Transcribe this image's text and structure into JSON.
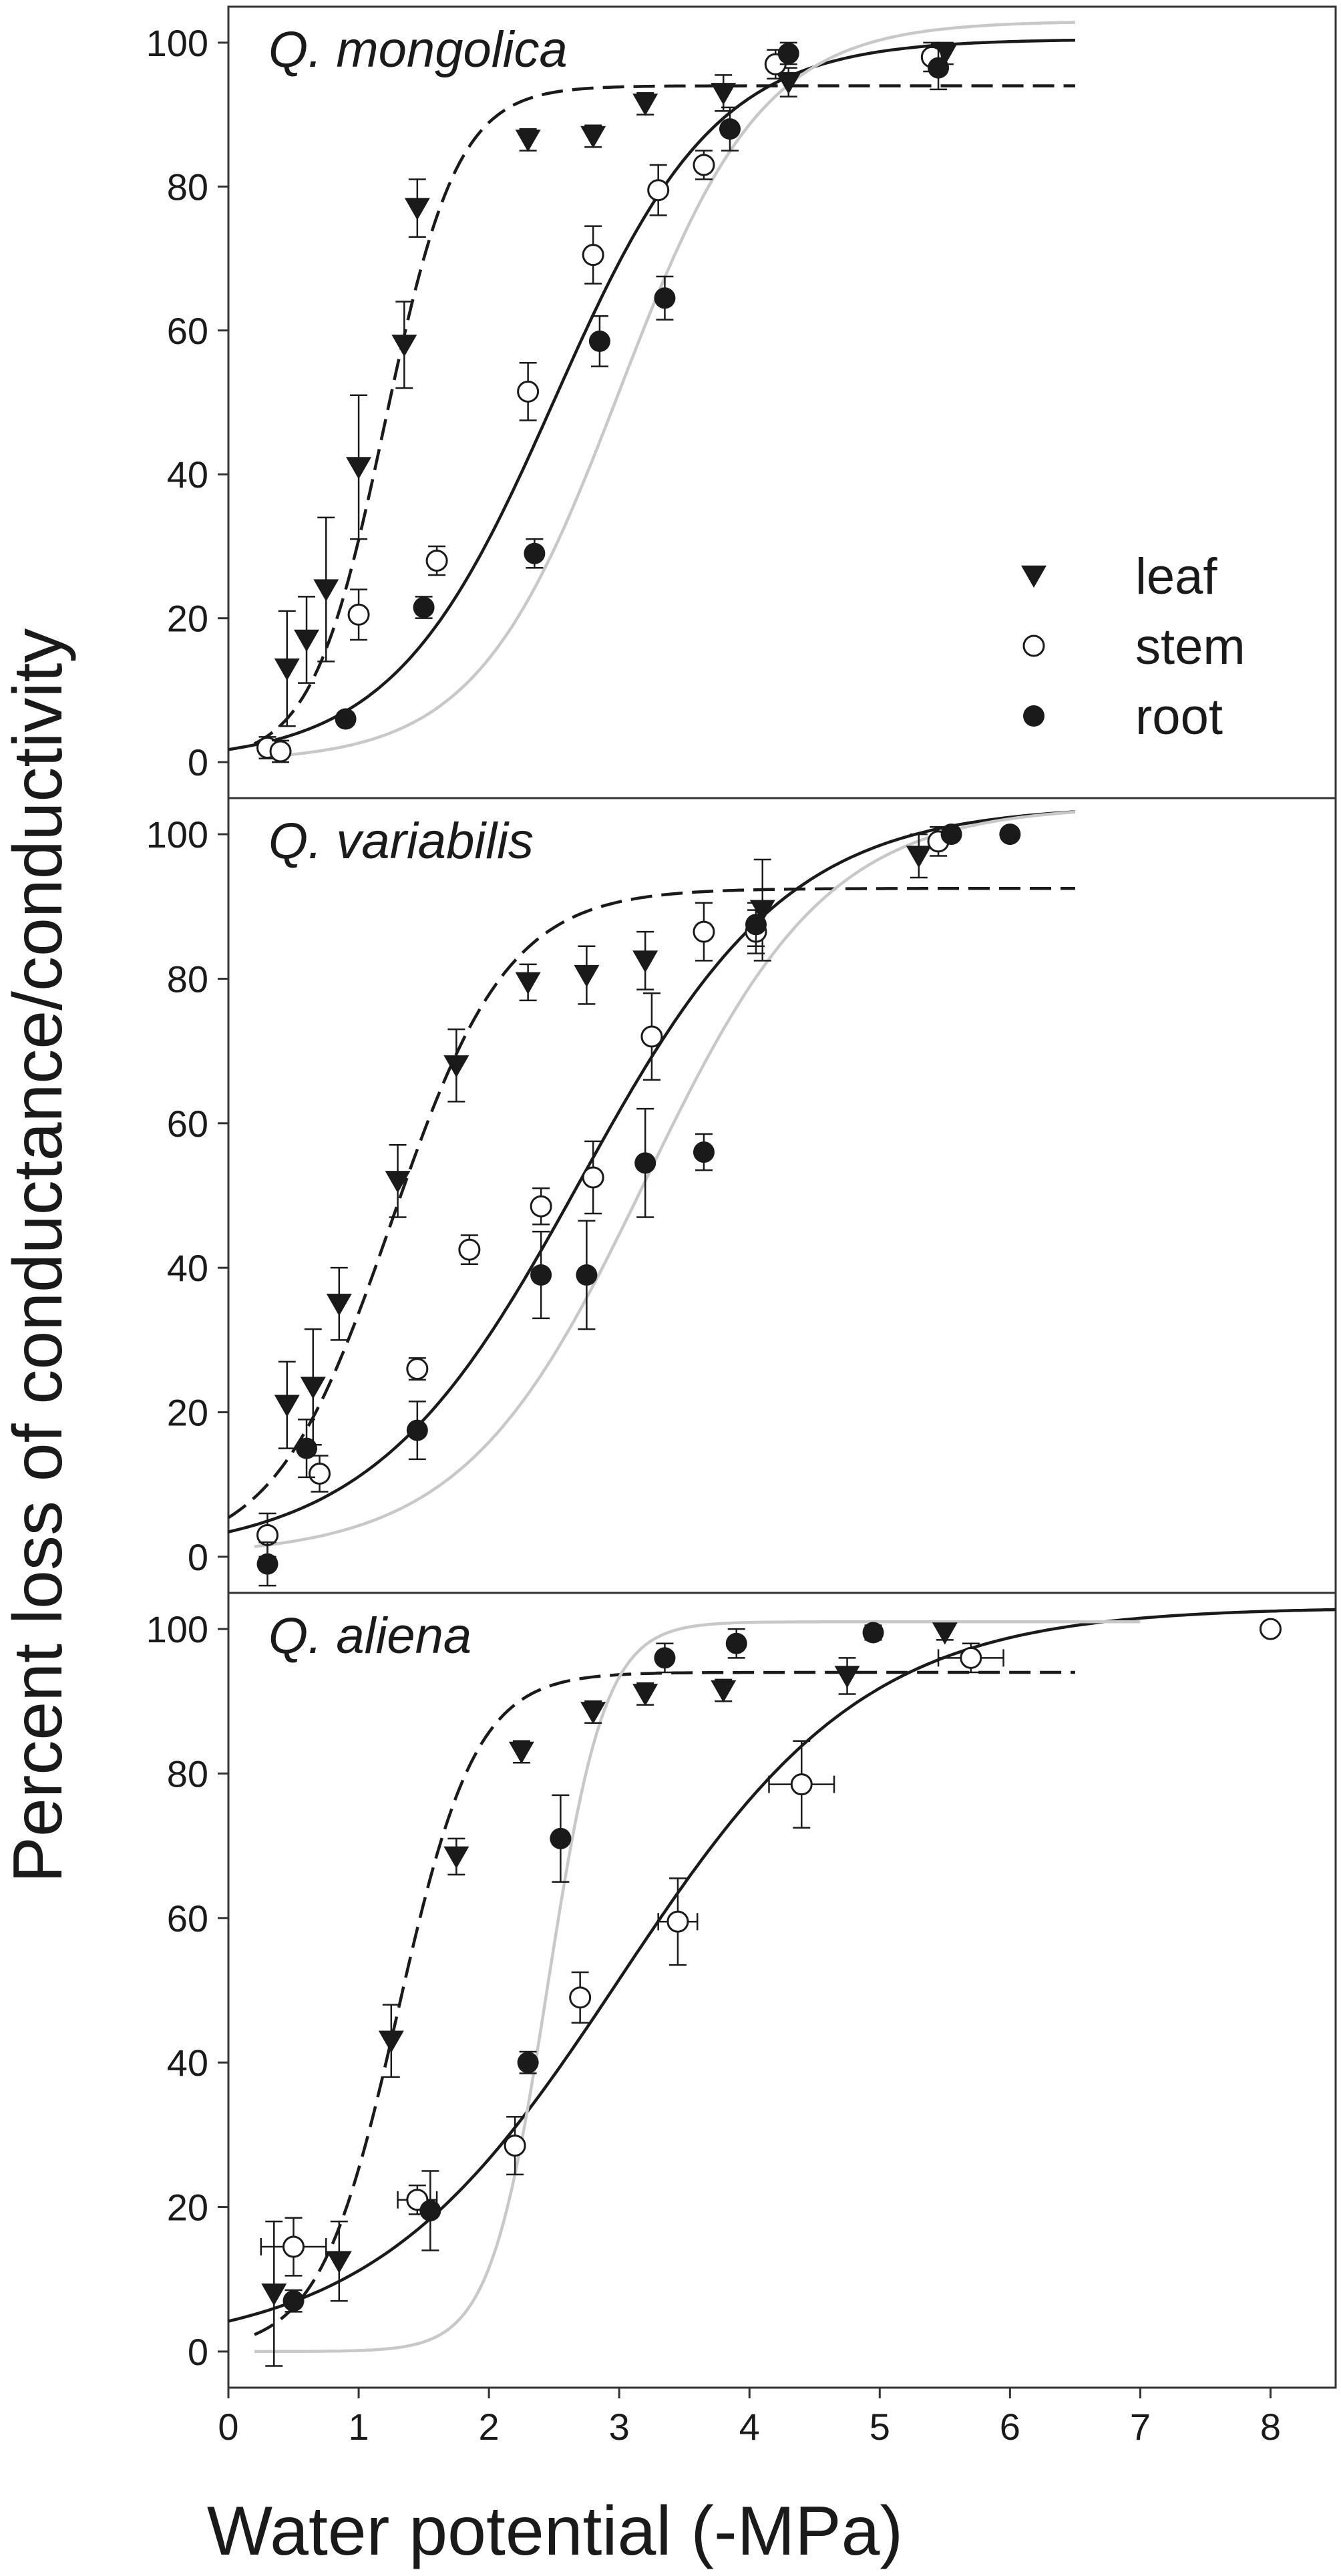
{
  "chart_data": {
    "type": "scatter",
    "ylabel": "Percent loss of conductance/conductivity",
    "xlabel": "Water potential (-MPa)",
    "xlim": [
      0,
      8.5
    ],
    "ylim": [
      -5,
      105
    ],
    "x_ticks": [
      0,
      1,
      2,
      3,
      4,
      5,
      6,
      7,
      8
    ],
    "y_ticks": [
      0,
      20,
      40,
      60,
      80,
      100
    ],
    "legend": {
      "placement": "inside first panel, right",
      "entries": [
        {
          "key": "leaf",
          "label": "leaf",
          "marker": "filled-triangle-down",
          "line": "dashed black"
        },
        {
          "key": "stem",
          "label": "stem",
          "marker": "open-circle",
          "line": "solid black"
        },
        {
          "key": "root",
          "label": "root",
          "marker": "filled-circle",
          "line": "solid light gray"
        }
      ]
    },
    "colors": {
      "black": "#1a1a1a",
      "gray_curve": "#c8c8c8",
      "axis": "#333333"
    },
    "panels": [
      {
        "title": "Q. mongolica",
        "series": [
          {
            "key": "leaf",
            "name": "leaf",
            "points": [
              {
                "x": 0.45,
                "y": 13,
                "yerr": 8
              },
              {
                "x": 0.6,
                "y": 17,
                "yerr": 6
              },
              {
                "x": 0.75,
                "y": 24,
                "yerr": 10
              },
              {
                "x": 1.0,
                "y": 41,
                "yerr": 10
              },
              {
                "x": 1.35,
                "y": 58,
                "yerr": 6
              },
              {
                "x": 1.45,
                "y": 77,
                "yerr": 4
              },
              {
                "x": 2.3,
                "y": 86.5,
                "yerr": 1.5
              },
              {
                "x": 2.8,
                "y": 87,
                "yerr": 1.5
              },
              {
                "x": 3.2,
                "y": 91.5,
                "yerr": 1.5
              },
              {
                "x": 3.8,
                "y": 93,
                "yerr": 2.5
              },
              {
                "x": 4.3,
                "y": 94.5,
                "yerr": 2
              },
              {
                "x": 5.5,
                "y": 98.5,
                "yerr": 1.5
              }
            ]
          },
          {
            "key": "stem",
            "name": "stem",
            "points": [
              {
                "x": 0.3,
                "y": 2,
                "yerr": 1.5
              },
              {
                "x": 0.4,
                "y": 1.5,
                "yerr": 1.5
              },
              {
                "x": 1.0,
                "y": 20.5,
                "yerr": 3.5
              },
              {
                "x": 1.6,
                "y": 28,
                "yerr": 2
              },
              {
                "x": 2.3,
                "y": 51.5,
                "yerr": 4
              },
              {
                "x": 2.8,
                "y": 70.5,
                "yerr": 4
              },
              {
                "x": 3.3,
                "y": 79.5,
                "yerr": 3.5
              },
              {
                "x": 3.65,
                "y": 83,
                "yerr": 2
              },
              {
                "x": 4.2,
                "y": 97,
                "yerr": 2
              },
              {
                "x": 5.4,
                "y": 98,
                "yerr": 2
              }
            ]
          },
          {
            "key": "root",
            "name": "root",
            "points": [
              {
                "x": 0.9,
                "y": 6,
                "yerr": 0.8
              },
              {
                "x": 1.5,
                "y": 21.5,
                "yerr": 1.5
              },
              {
                "x": 2.35,
                "y": 29,
                "yerr": 2
              },
              {
                "x": 2.85,
                "y": 58.5,
                "yerr": 3.5
              },
              {
                "x": 3.35,
                "y": 64.5,
                "yerr": 3
              },
              {
                "x": 3.85,
                "y": 88,
                "yerr": 3
              },
              {
                "x": 4.3,
                "y": 98.5,
                "yerr": 1.5
              },
              {
                "x": 5.45,
                "y": 96.5,
                "yerr": 3
              }
            ]
          }
        ],
        "curves": [
          {
            "key": "leaf",
            "style": "dashed",
            "a": 94,
            "b": 1.2,
            "c": 0.28,
            "x_start": 0.2,
            "x_end": 6.5
          },
          {
            "key": "stem",
            "style": "solid",
            "a": 100.5,
            "b": 2.5,
            "c": 0.62,
            "x_start": 0,
            "x_end": 6.5
          },
          {
            "key": "root",
            "style": "gray",
            "a": 103,
            "b": 3.0,
            "c": 0.55,
            "x_start": 0.4,
            "x_end": 6.5
          }
        ]
      },
      {
        "title": "Q. variabilis",
        "series": [
          {
            "key": "leaf",
            "name": "leaf",
            "points": [
              {
                "x": 0.45,
                "y": 21,
                "yerr": 6
              },
              {
                "x": 0.65,
                "y": 23.5,
                "yerr": 8
              },
              {
                "x": 0.85,
                "y": 35,
                "yerr": 5
              },
              {
                "x": 1.3,
                "y": 52,
                "yerr": 5
              },
              {
                "x": 1.75,
                "y": 68,
                "yerr": 5
              },
              {
                "x": 2.3,
                "y": 79.5,
                "yerr": 2.5
              },
              {
                "x": 2.75,
                "y": 80.5,
                "yerr": 4
              },
              {
                "x": 3.2,
                "y": 82.5,
                "yerr": 4
              },
              {
                "x": 4.1,
                "y": 89.5,
                "yerr": 7
              },
              {
                "x": 5.3,
                "y": 97,
                "yerr": 3
              }
            ]
          },
          {
            "key": "stem",
            "name": "stem",
            "points": [
              {
                "x": 0.3,
                "y": 3,
                "yerr": 3
              },
              {
                "x": 0.7,
                "y": 11.5,
                "yerr": 2.5
              },
              {
                "x": 1.45,
                "y": 26,
                "yerr": 1.5
              },
              {
                "x": 1.85,
                "y": 42.5,
                "yerr": 2
              },
              {
                "x": 2.4,
                "y": 48.5,
                "yerr": 2.5
              },
              {
                "x": 2.8,
                "y": 52.5,
                "yerr": 5
              },
              {
                "x": 3.25,
                "y": 72,
                "yerr": 6
              },
              {
                "x": 3.65,
                "y": 86.5,
                "yerr": 4
              },
              {
                "x": 4.05,
                "y": 86.5,
                "yerr": 3
              },
              {
                "x": 5.45,
                "y": 99,
                "yerr": 2
              }
            ]
          },
          {
            "key": "root",
            "name": "root",
            "points": [
              {
                "x": 0.3,
                "y": -1,
                "yerr": 3
              },
              {
                "x": 0.6,
                "y": 15,
                "yerr": 4
              },
              {
                "x": 1.45,
                "y": 17.5,
                "yerr": 4
              },
              {
                "x": 2.4,
                "y": 39,
                "yerr": 6
              },
              {
                "x": 2.75,
                "y": 39,
                "yerr": 7.5
              },
              {
                "x": 3.2,
                "y": 54.5,
                "yerr": 7.5
              },
              {
                "x": 3.65,
                "y": 56,
                "yerr": 2.5
              },
              {
                "x": 4.05,
                "y": 87.5,
                "yerr": 3
              },
              {
                "x": 5.55,
                "y": 100,
                "yerr": 0.5
              },
              {
                "x": 6.0,
                "y": 100,
                "yerr": 0.5
              }
            ]
          }
        ],
        "curves": [
          {
            "key": "leaf",
            "style": "dashed",
            "a": 92.5,
            "b": 1.25,
            "c": 0.45,
            "x_start": 0,
            "x_end": 6.5
          },
          {
            "key": "stem",
            "style": "solid",
            "a": 104,
            "b": 2.7,
            "c": 0.8,
            "x_start": 0,
            "x_end": 6.5
          },
          {
            "key": "root",
            "style": "gray",
            "a": 104,
            "b": 3.2,
            "c": 0.7,
            "x_start": 0.2,
            "x_end": 6.5
          }
        ]
      },
      {
        "title": "Q. aliena",
        "series": [
          {
            "key": "leaf",
            "name": "leaf",
            "points": [
              {
                "x": 0.35,
                "y": 8,
                "yerr": 10
              },
              {
                "x": 0.85,
                "y": 12.5,
                "yerr": 5.5
              },
              {
                "x": 1.25,
                "y": 43,
                "yerr": 5
              },
              {
                "x": 1.75,
                "y": 68.5,
                "yerr": 2.5
              },
              {
                "x": 2.25,
                "y": 83,
                "yerr": 1.5
              },
              {
                "x": 2.8,
                "y": 88.5,
                "yerr": 1.5
              },
              {
                "x": 3.2,
                "y": 91,
                "yerr": 1.5
              },
              {
                "x": 3.8,
                "y": 91.5,
                "yerr": 1.5
              },
              {
                "x": 4.75,
                "y": 93.5,
                "yerr": 2.5
              },
              {
                "x": 5.5,
                "y": 99.5,
                "yerr": 1
              }
            ]
          },
          {
            "key": "stem",
            "name": "stem",
            "points": [
              {
                "x": 0.5,
                "y": 14.5,
                "yerr": 4,
                "xerr": 0.25
              },
              {
                "x": 1.45,
                "y": 21,
                "yerr": 2,
                "xerr": 0.15
              },
              {
                "x": 2.2,
                "y": 28.5,
                "yerr": 4
              },
              {
                "x": 2.7,
                "y": 49,
                "yerr": 3.5
              },
              {
                "x": 3.45,
                "y": 59.5,
                "yerr": 6,
                "xerr": 0.15
              },
              {
                "x": 4.4,
                "y": 78.5,
                "yerr": 6,
                "xerr": 0.25
              },
              {
                "x": 5.7,
                "y": 96,
                "yerr": 2,
                "xerr": 0.25
              },
              {
                "x": 8.0,
                "y": 100,
                "yerr": 0.5
              }
            ]
          },
          {
            "key": "root",
            "name": "root",
            "points": [
              {
                "x": 0.5,
                "y": 7,
                "yerr": 1.5
              },
              {
                "x": 1.55,
                "y": 19.5,
                "yerr": 5.5
              },
              {
                "x": 2.3,
                "y": 40,
                "yerr": 1.5
              },
              {
                "x": 2.55,
                "y": 71,
                "yerr": 6
              },
              {
                "x": 3.35,
                "y": 96,
                "yerr": 2
              },
              {
                "x": 3.9,
                "y": 98,
                "yerr": 2
              },
              {
                "x": 4.95,
                "y": 99.5,
                "yerr": 1
              }
            ]
          }
        ],
        "curves": [
          {
            "key": "leaf",
            "style": "dashed",
            "a": 94,
            "b": 1.3,
            "c": 0.3,
            "x_start": 0.2,
            "x_end": 6.5
          },
          {
            "key": "stem",
            "style": "solid",
            "a": 103,
            "b": 3.0,
            "c": 0.95,
            "x_start": 0,
            "x_end": 8.5
          },
          {
            "key": "root",
            "style": "gray",
            "a": 101,
            "b": 2.45,
            "c": 0.22,
            "x_start": 0.2,
            "x_end": 7.0
          }
        ]
      }
    ]
  }
}
